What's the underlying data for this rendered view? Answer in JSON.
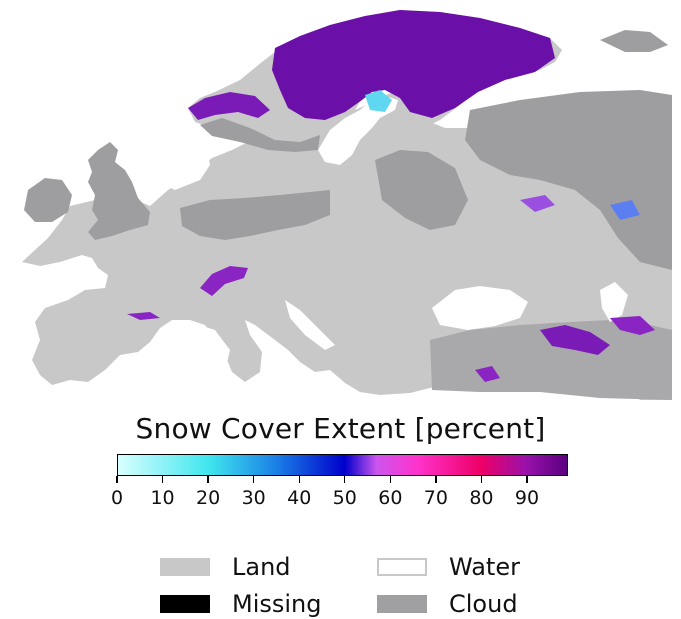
{
  "colorbar": {
    "title": "Snow Cover Extent [percent]",
    "min": 0,
    "max": 99,
    "ticks": [
      0,
      10,
      20,
      30,
      40,
      50,
      60,
      70,
      80,
      90
    ],
    "stops": [
      {
        "v": 0,
        "color": "#d9ffff"
      },
      {
        "v": 20,
        "color": "#3fe6ee"
      },
      {
        "v": 35,
        "color": "#1a7fe6"
      },
      {
        "v": 50,
        "color": "#0000cc"
      },
      {
        "v": 57,
        "color": "#cc55ee"
      },
      {
        "v": 66,
        "color": "#ff33cc"
      },
      {
        "v": 80,
        "color": "#ee0066"
      },
      {
        "v": 90,
        "color": "#9911aa"
      },
      {
        "v": 99,
        "color": "#5a0080"
      }
    ]
  },
  "legend": [
    {
      "label": "Land",
      "color": "#c8c8c8",
      "border": "#c8c8c8"
    },
    {
      "label": "Water",
      "color": "#ffffff",
      "border": "#c8c8c8"
    },
    {
      "label": "Missing",
      "color": "#000000",
      "border": "#000000"
    },
    {
      "label": "Cloud",
      "color": "#a0a0a3",
      "border": "#a0a0a3"
    }
  ],
  "map_colors": {
    "land": "#c8c8c8",
    "cloud": "#9e9ea1",
    "water": "#ffffff",
    "snow": "#6a0fa8",
    "snow_light": "#9b4fe0",
    "snow_cyan": "#5fd7f0"
  }
}
